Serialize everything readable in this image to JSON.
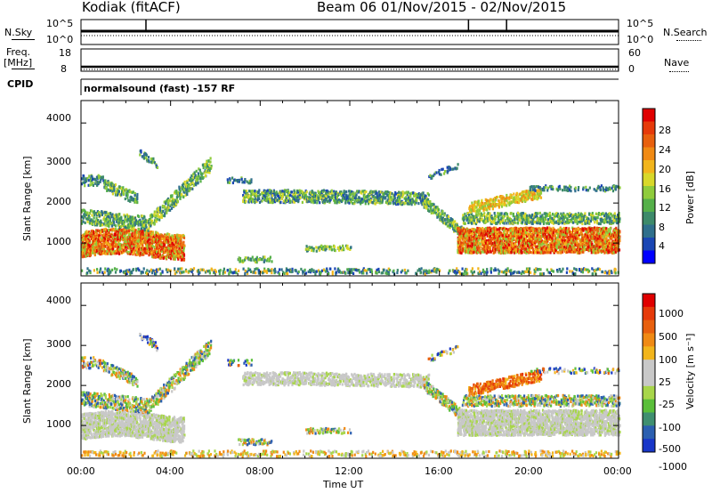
{
  "header": {
    "station": "Kodiak (fitACF)",
    "beam_range": "Beam 06  01/Nov/2015 - 02/Nov/2015"
  },
  "top_panels": {
    "nsky_label": "N.Sky",
    "nsearch_label": "N.Search",
    "nsky_ticks": [
      "10^5",
      "10^0"
    ],
    "nsearch_ticks": [
      "10^5",
      "10^0"
    ],
    "freq_label": "Freq.",
    "freq_unit": "[MHz]",
    "freq_ticks": [
      "18",
      "8"
    ],
    "nave_label": "Nave",
    "nave_ticks": [
      "60",
      "0"
    ],
    "cpid_label": "CPID",
    "cpid_text": "normalsound (fast) -157 RF"
  },
  "colors": {
    "power": [
      "#0000ff",
      "#1a46b4",
      "#2f6f8c",
      "#3d8a6a",
      "#55b04a",
      "#8fcc3c",
      "#d8d82a",
      "#f2b51c",
      "#f08a14",
      "#e8600e",
      "#e63a0a",
      "#e00000"
    ],
    "velocity": [
      "#1836c8",
      "#2b5fb0",
      "#3f8f70",
      "#5abf3a",
      "#a8d64a",
      "#c8c8c8",
      "#c8c8c8",
      "#f2b51c",
      "#f08a14",
      "#e8600e",
      "#e63a0a",
      "#e00000"
    ]
  },
  "chart_data": [
    {
      "type": "heatmap",
      "name": "power",
      "ylabel": "Slant Range [km]",
      "yticks": [
        "4000",
        "3000",
        "2000",
        "1000"
      ],
      "ylim": [
        180,
        4560
      ],
      "xlim": [
        0,
        24
      ],
      "colorbar_label": "Power [dB]",
      "colorbar_ticks": [
        "28",
        "24",
        "20",
        "16",
        "12",
        "8",
        "4"
      ],
      "colorbar_range": [
        0,
        32
      ]
    },
    {
      "type": "heatmap",
      "name": "velocity",
      "ylabel": "Slant Range [km]",
      "yticks": [
        "4000",
        "3000",
        "2000",
        "1000"
      ],
      "ylim": [
        180,
        4560
      ],
      "xlim": [
        0,
        24
      ],
      "colorbar_label": "Velocity [m s⁻¹]",
      "colorbar_ticks": [
        "1000",
        "500",
        "100",
        "25",
        "-25",
        "-100",
        "-500",
        "-1000"
      ]
    }
  ],
  "xaxis": {
    "ticks": [
      "00:00",
      "04:00",
      "08:00",
      "12:00",
      "16:00",
      "20:00",
      "00:00"
    ],
    "label": "Time UT"
  }
}
